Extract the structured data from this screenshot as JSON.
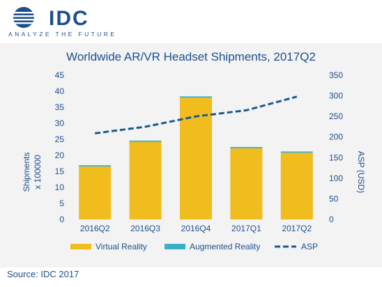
{
  "logo": {
    "text": "IDC",
    "tagline": "ANALYZE THE FUTURE"
  },
  "source": "Source: IDC 2017",
  "colors": {
    "vr": "#f0bc1e",
    "ar": "#3ab0c6",
    "asp": "#1c5a8e",
    "text": "#1c4f8c",
    "logo": "#1c4f8c"
  },
  "chart_data": {
    "type": "bar",
    "title": "Worldwide AR/VR Headset Shipments, 2017Q2",
    "xlabel": "",
    "ylabel": "Shipments x 100000",
    "ylabel_lines": [
      "Shipments",
      "x 100000"
    ],
    "y2label": "ASP (USD)",
    "ylim": [
      0,
      45
    ],
    "y2lim": [
      0,
      350
    ],
    "yticks": [
      0,
      5,
      10,
      15,
      20,
      25,
      30,
      35,
      40,
      45
    ],
    "y2ticks": [
      0,
      50,
      100,
      150,
      200,
      250,
      300,
      350
    ],
    "categories": [
      "2016Q2",
      "2016Q3",
      "2016Q4",
      "2017Q1",
      "2017Q2"
    ],
    "stacked": true,
    "series": [
      {
        "name": "Virtual Reality",
        "values": [
          16.5,
          24.2,
          38.0,
          22.2,
          20.8
        ]
      },
      {
        "name": "Augmented Reality",
        "values": [
          0.4,
          0.4,
          0.4,
          0.4,
          0.4
        ]
      }
    ],
    "line_series": {
      "name": "ASP",
      "axis": "right",
      "style": "dashed",
      "values": [
        209,
        225,
        250,
        265,
        298
      ]
    },
    "grid": false,
    "legend_position": "bottom"
  }
}
